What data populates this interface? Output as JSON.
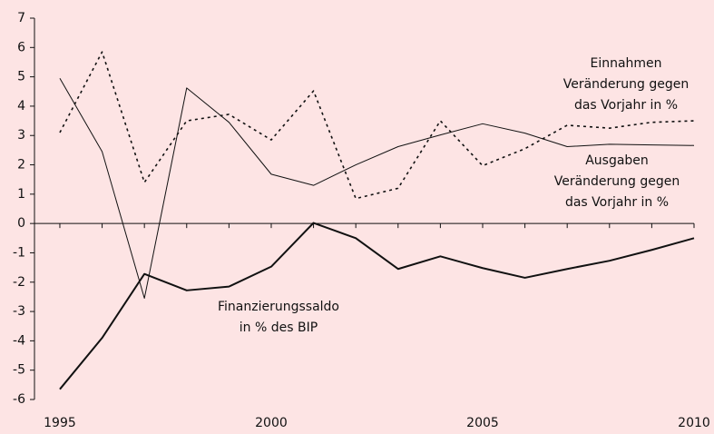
{
  "chart_data": {
    "type": "line",
    "x": [
      1995,
      1996,
      1997,
      1998,
      1999,
      2000,
      2001,
      2002,
      2003,
      2004,
      2005,
      2006,
      2007,
      2008,
      2009,
      2010
    ],
    "series": [
      {
        "label": [
          "Ausgaben",
          "Veränderung gegen",
          "das Vorjahr in %"
        ],
        "color": "#111111",
        "style": "solid",
        "width": 1,
        "values": [
          4.95,
          2.45,
          -2.55,
          4.62,
          3.45,
          1.68,
          1.3,
          2.0,
          2.62,
          3.02,
          3.4,
          3.08,
          2.62,
          2.7,
          2.68,
          2.66
        ]
      },
      {
        "label": [
          "Einnahmen",
          "Veränderung gegen",
          "das Vorjahr in %"
        ],
        "color": "#111111",
        "style": "dotted",
        "width": 1.6,
        "values": [
          3.1,
          5.85,
          1.4,
          3.5,
          3.72,
          2.85,
          4.52,
          0.85,
          1.2,
          3.5,
          1.97,
          2.55,
          3.35,
          3.25,
          3.45,
          3.5
        ]
      },
      {
        "label": [
          "Finanzierungssaldo",
          "in % des BIP"
        ],
        "color": "#111111",
        "style": "solid",
        "width": 2,
        "values": [
          -5.65,
          -3.9,
          -1.72,
          -2.28,
          -2.15,
          -1.47,
          0.02,
          -0.5,
          -1.55,
          -1.12,
          -1.52,
          -1.85,
          -1.55,
          -1.27,
          -0.9,
          -0.5
        ]
      }
    ],
    "xlim": [
      1994.4,
      2010
    ],
    "xticks": [
      1995,
      2000,
      2005,
      2010
    ],
    "ylim": [
      -6,
      7
    ],
    "yticks": [
      -6,
      -5,
      -4,
      -3,
      -2,
      -1,
      0,
      1,
      2,
      3,
      4,
      5,
      6,
      7
    ]
  }
}
